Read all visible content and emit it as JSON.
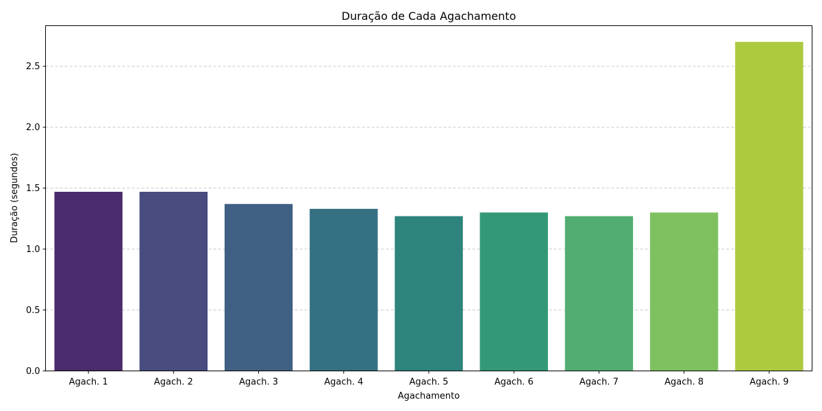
{
  "chart_data": {
    "type": "bar",
    "title": "Duração de Cada Agachamento",
    "xlabel": "Agachamento",
    "ylabel": "Duração (segundos)",
    "categories": [
      "Agach. 1",
      "Agach. 2",
      "Agach. 3",
      "Agach. 4",
      "Agach. 5",
      "Agach. 6",
      "Agach. 7",
      "Agach. 8",
      "Agach. 9"
    ],
    "values": [
      1.47,
      1.47,
      1.37,
      1.33,
      1.27,
      1.3,
      1.27,
      1.3,
      2.7
    ],
    "colors": [
      "#4a2b6b",
      "#484c7f",
      "#3f5f83",
      "#357183",
      "#2e837c",
      "#339878",
      "#52ad72",
      "#7fc161",
      "#adc93f"
    ],
    "ylim": [
      0,
      2.833
    ],
    "yticks": [
      "0.0",
      "0.5",
      "1.0",
      "1.5",
      "2.0",
      "2.5"
    ],
    "ytick_values": [
      0,
      0.5,
      1.0,
      1.5,
      2.0,
      2.5
    ],
    "grid": "y-dashed",
    "grid_color": "#c8c8c8"
  }
}
